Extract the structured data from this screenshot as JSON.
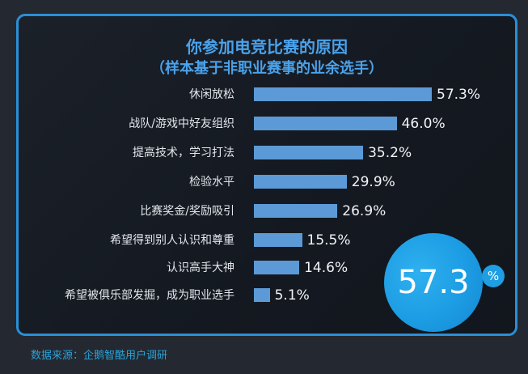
{
  "title": "你参加电竞比赛的原因",
  "subtitle": "（样本基于非职业赛事的业余选手）",
  "highlight": {
    "value": "57.3",
    "unit": "%"
  },
  "source": "数据来源：企鹅智酷用户调研",
  "colors": {
    "bar": "#5b9ad6",
    "title": "#4aa2ea",
    "frame": "#2a8fd6",
    "circle": "#1c9ce3",
    "source": "#2aa3d8",
    "background": "#232831"
  },
  "chart_data": {
    "type": "bar",
    "orientation": "horizontal",
    "title": "你参加电竞比赛的原因",
    "subtitle": "（样本基于非职业赛事的业余选手）",
    "xlabel": "",
    "ylabel": "",
    "unit": "%",
    "grid": false,
    "categories": [
      "休闲放松",
      "战队/游戏中好友组织",
      "提高技术，学习打法",
      "检验水平",
      "比赛奖金/奖励吸引",
      "希望得到别人认识和尊重",
      "认识高手大神",
      "希望被俱乐部发掘，成为职业选手"
    ],
    "values": [
      57.3,
      46.0,
      35.2,
      29.9,
      26.9,
      15.5,
      14.6,
      5.1
    ],
    "value_labels": [
      "57.3%",
      "46.0%",
      "35.2%",
      "29.9%",
      "26.9%",
      "15.5%",
      "14.6%",
      "5.1%"
    ],
    "annotations": [
      "57.3%"
    ],
    "source": "数据来源：企鹅智酷用户调研"
  }
}
